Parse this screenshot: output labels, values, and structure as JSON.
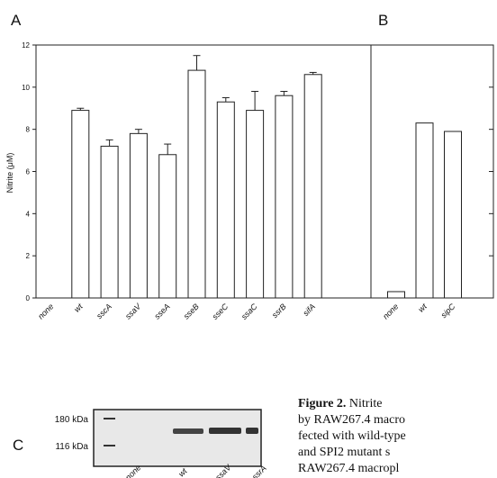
{
  "chart_data": [
    {
      "type": "bar",
      "panel": "A",
      "ylabel": "Nitrite (μM)",
      "categories": [
        "none",
        "wt",
        "sscA",
        "ssaV",
        "sseA",
        "sseB",
        "sseC",
        "ssaC",
        "ssrB",
        "sifA"
      ],
      "values": [
        0,
        8.9,
        7.2,
        7.8,
        6.8,
        10.8,
        9.3,
        8.9,
        9.6,
        10.6
      ],
      "errors": [
        0,
        0.1,
        0.3,
        0.2,
        0.5,
        0.7,
        0.2,
        0.9,
        0.2,
        0.1
      ],
      "color": "#ffffff",
      "ylim": [
        0,
        12
      ],
      "yticks": [
        0,
        2,
        4,
        6,
        8,
        10,
        12
      ]
    },
    {
      "type": "bar",
      "panel": "B",
      "categories": [
        "none",
        "wt",
        "sipC"
      ],
      "values": [
        0.3,
        8.3,
        7.9
      ],
      "color": "#ffffff",
      "ylim": [
        0,
        12
      ],
      "yticks": [
        0,
        2,
        4,
        6,
        8,
        10,
        12
      ]
    }
  ],
  "gel": {
    "panel": "C",
    "markers": [
      "180 kDa",
      "116 kDa"
    ],
    "lanes": [
      "none",
      "wt",
      "ssaV",
      "ssrA"
    ]
  },
  "caption": {
    "label": "Figure 2.",
    "lines": [
      "Nitrite",
      "by RAW267.4 macro",
      "fected with wild-type",
      "and SPI2 mutant s",
      "RAW267.4 macropl"
    ]
  }
}
